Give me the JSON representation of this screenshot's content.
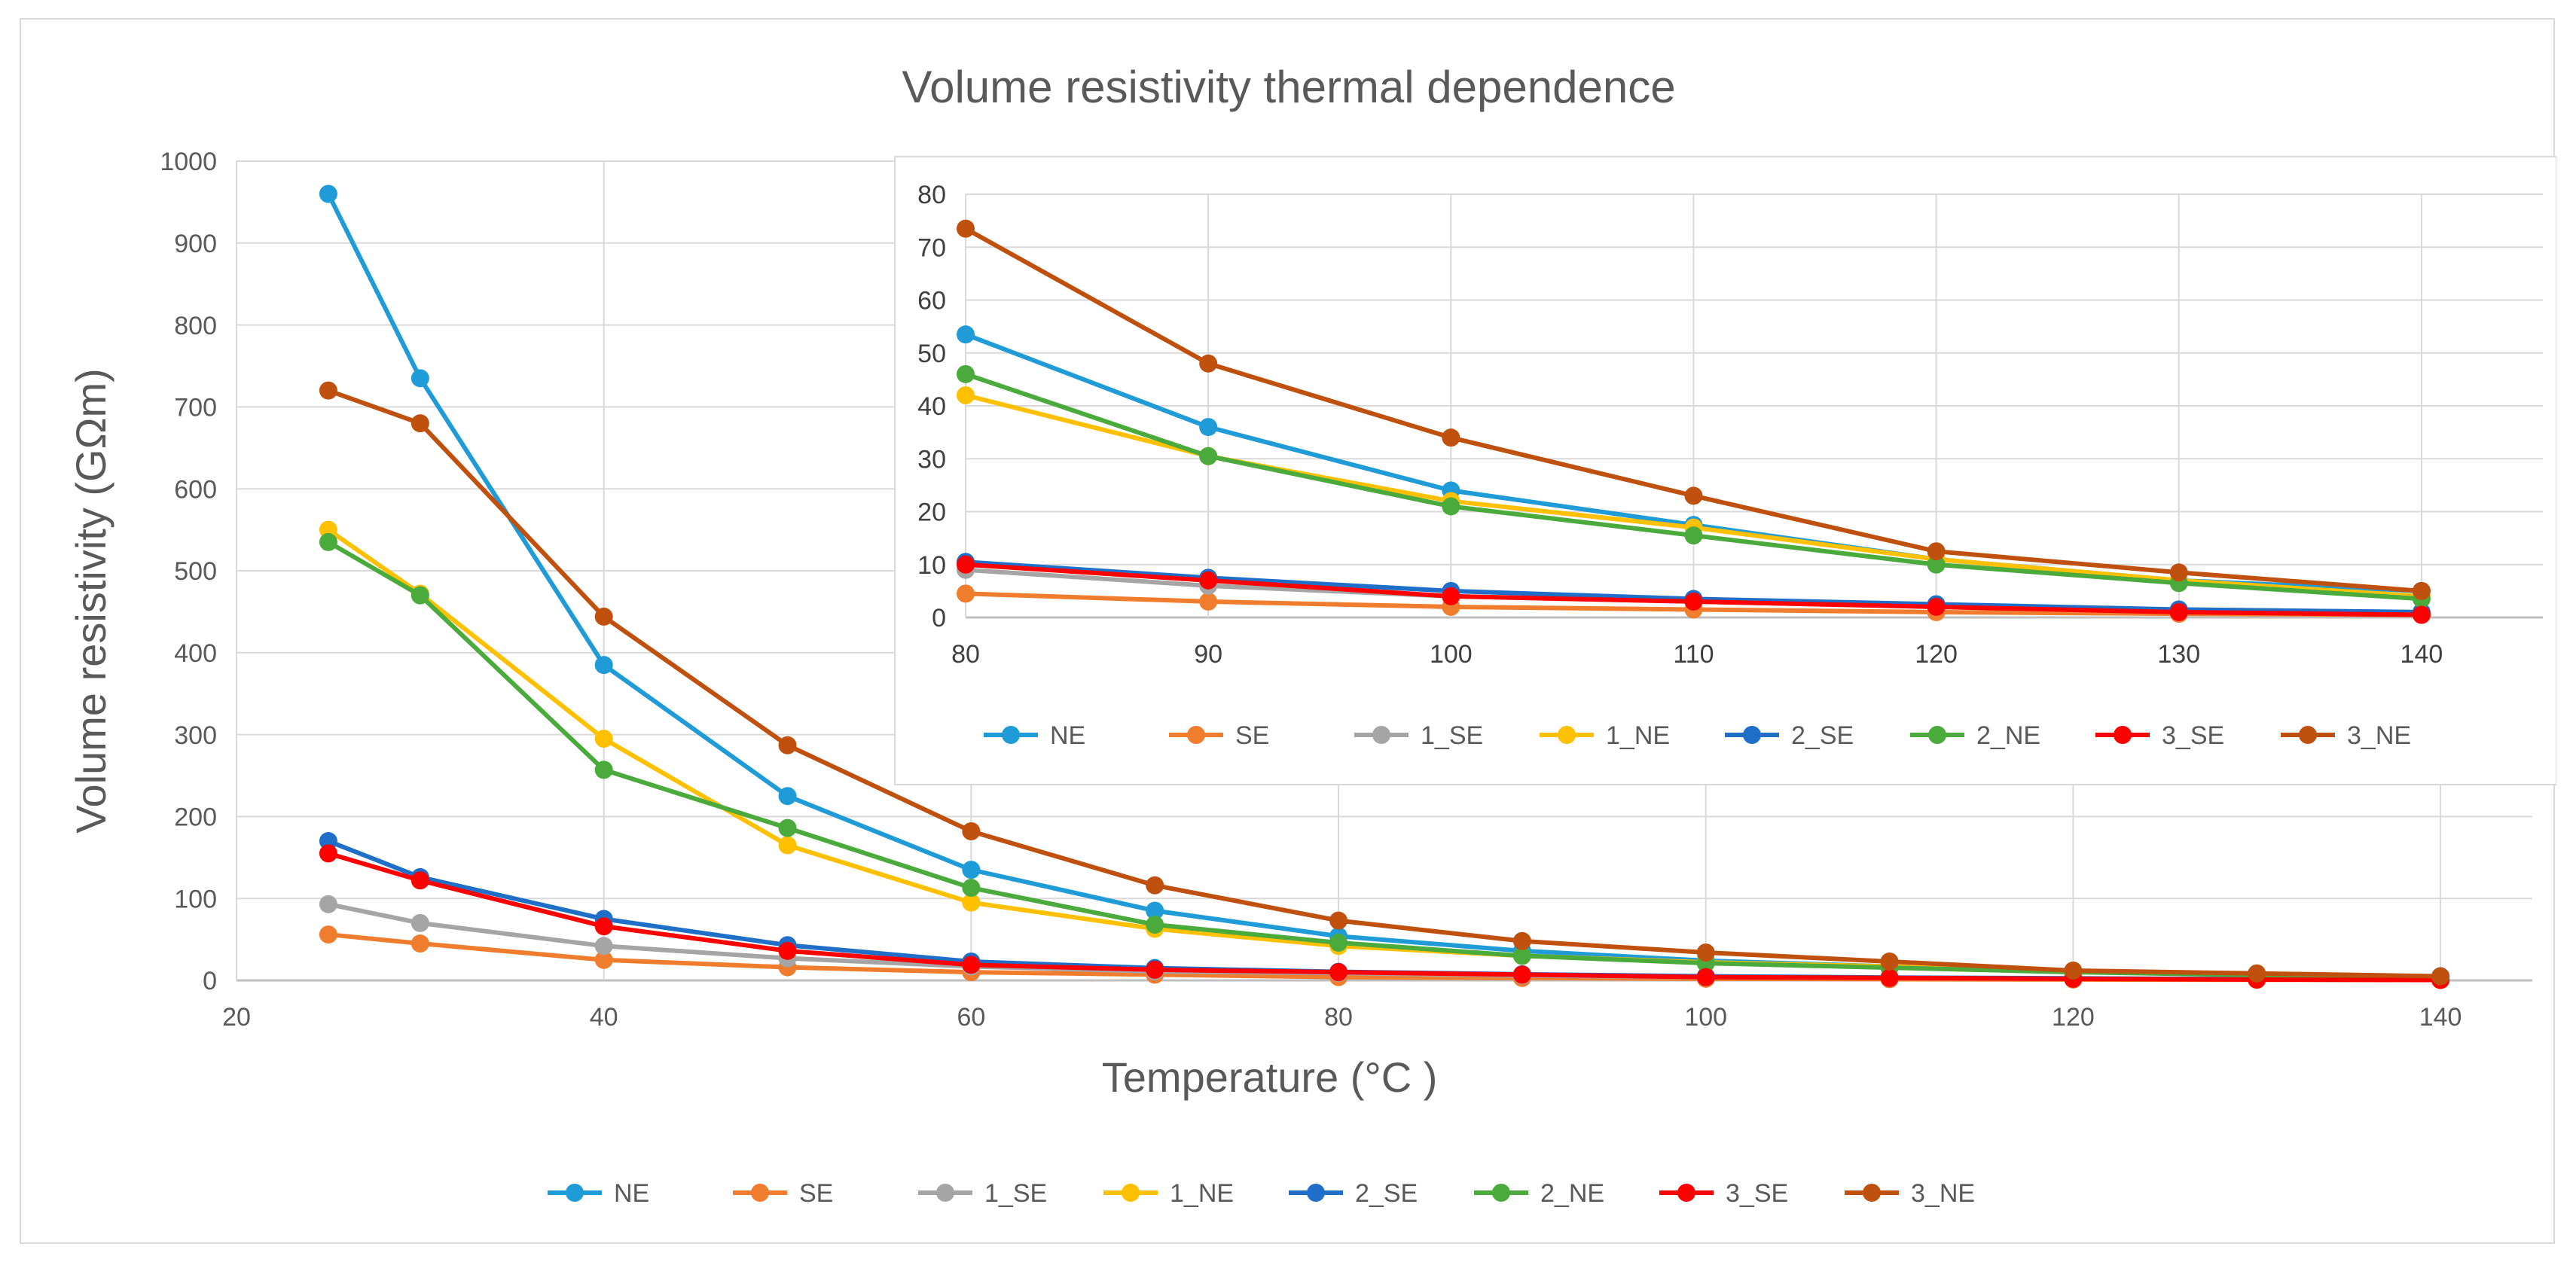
{
  "chart_data": [
    {
      "type": "line",
      "role": "main",
      "title": "Volume resistivity thermal dependence",
      "xlabel": "Temperature (°C )",
      "ylabel": "Volume resistivity (GΩm)",
      "xlim": [
        20,
        145
      ],
      "ylim": [
        0,
        1000
      ],
      "xticks": [
        20,
        40,
        60,
        80,
        100,
        120,
        140
      ],
      "yticks": [
        0,
        100,
        200,
        300,
        400,
        500,
        600,
        700,
        800,
        900,
        1000
      ],
      "grid": true,
      "legend": "bottom",
      "x": [
        25,
        30,
        40,
        50,
        60,
        70,
        80,
        90,
        100,
        110,
        120,
        130,
        140
      ],
      "series": [
        {
          "name": "NE",
          "color": "#1f9bd8",
          "values": [
            960,
            735,
            385,
            225,
            135,
            85,
            54,
            36,
            24,
            17,
            11,
            7,
            5
          ]
        },
        {
          "name": "SE",
          "color": "#f07d2e",
          "values": [
            56,
            45,
            25,
            16,
            10,
            7,
            4,
            3,
            2,
            1.5,
            1,
            0.7,
            0.5
          ]
        },
        {
          "name": "1_SE",
          "color": "#a5a5a5",
          "values": [
            93,
            70,
            42,
            27,
            17,
            11,
            9,
            6,
            4,
            3,
            2,
            1.5,
            1
          ]
        },
        {
          "name": "1_NE",
          "color": "#ffc000",
          "values": [
            550,
            472,
            295,
            165,
            95,
            63,
            42,
            30,
            22,
            17,
            11,
            7,
            4
          ]
        },
        {
          "name": "2_SE",
          "color": "#1f6fc9",
          "values": [
            170,
            126,
            75,
            43,
            23,
            15,
            10.5,
            7.5,
            5,
            3.5,
            2.5,
            1.5,
            1
          ]
        },
        {
          "name": "2_NE",
          "color": "#4aab3c",
          "values": [
            535,
            470,
            257,
            186,
            113,
            68,
            46,
            30,
            21,
            15.5,
            10,
            6.5,
            3.5
          ]
        },
        {
          "name": "3_SE",
          "color": "#ff0000",
          "values": [
            155,
            122,
            66,
            36,
            19,
            13,
            10,
            7,
            4,
            3,
            2,
            1,
            0.5
          ]
        },
        {
          "name": "3_NE",
          "color": "#c0500e",
          "values": [
            720,
            680,
            444,
            287,
            182,
            116,
            73,
            48,
            34,
            23,
            12,
            8.5,
            5
          ]
        }
      ]
    },
    {
      "type": "line",
      "role": "inset",
      "title": "",
      "xlabel": "",
      "ylabel": "",
      "xlim": [
        80,
        145
      ],
      "ylim": [
        0,
        80
      ],
      "xticks": [
        80,
        90,
        100,
        110,
        120,
        130,
        140
      ],
      "yticks": [
        0,
        10,
        20,
        30,
        40,
        50,
        60,
        70,
        80
      ],
      "grid": true,
      "legend": "bottom",
      "x": [
        80,
        90,
        100,
        110,
        120,
        130,
        140
      ],
      "series": [
        {
          "name": "NE",
          "color": "#1f9bd8",
          "values": [
            53.5,
            36,
            24,
            17.5,
            11,
            7,
            5
          ]
        },
        {
          "name": "SE",
          "color": "#f07d2e",
          "values": [
            4.5,
            3,
            2,
            1.5,
            1,
            0.7,
            0.5
          ]
        },
        {
          "name": "1_SE",
          "color": "#a5a5a5",
          "values": [
            9,
            6,
            4,
            3,
            2,
            1.5,
            1
          ]
        },
        {
          "name": "1_NE",
          "color": "#ffc000",
          "values": [
            42,
            30.5,
            22,
            17,
            11,
            7,
            4
          ]
        },
        {
          "name": "2_SE",
          "color": "#1f6fc9",
          "values": [
            10.5,
            7.5,
            5,
            3.5,
            2.5,
            1.5,
            1
          ]
        },
        {
          "name": "2_NE",
          "color": "#4aab3c",
          "values": [
            46,
            30.5,
            21,
            15.5,
            10,
            6.5,
            3.5
          ]
        },
        {
          "name": "3_SE",
          "color": "#ff0000",
          "values": [
            10,
            7,
            4,
            3,
            2,
            1,
            0.5
          ]
        },
        {
          "name": "3_NE",
          "color": "#c0500e",
          "values": [
            73.5,
            48,
            34,
            23,
            12.5,
            8.5,
            5
          ]
        }
      ]
    }
  ]
}
